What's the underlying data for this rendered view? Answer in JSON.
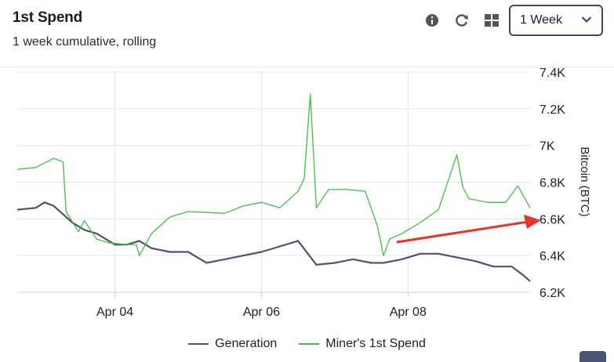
{
  "header": {
    "title": "1st Spend",
    "subtitle": "1 week cumulative, rolling",
    "range_select": {
      "value": "1 Week"
    },
    "icons": [
      "info-icon",
      "refresh-icon",
      "grid-view-icon",
      "chevron-down-icon"
    ]
  },
  "colors": {
    "generation": "#4a5573",
    "miners_first_spend": "#3fc13f",
    "annotation_arrow": "#e8332a",
    "grid": "#e5e5e5"
  },
  "chart_data": {
    "type": "line",
    "ylabel": "Bitcoin (BTC)",
    "ylim": [
      6200,
      7400
    ],
    "yticks": [
      6200,
      6400,
      6600,
      6800,
      7000,
      7200,
      7400
    ],
    "ytick_labels": [
      "6.2K",
      "6.4K",
      "6.6K",
      "6.8K",
      "7K",
      "7.2K",
      "7.4K"
    ],
    "xlim": [
      "2025-04-02 16:00",
      "2025-04-09 16:00"
    ],
    "xticks": [
      "2025-04-04",
      "2025-04-06",
      "2025-04-08"
    ],
    "xtick_labels": [
      "Apr 04",
      "Apr 06",
      "Apr 08"
    ],
    "grid": true,
    "legend_position": "bottom",
    "series": [
      {
        "name": "Generation",
        "x": [
          "2025-04-02 16:00",
          "2025-04-02 22:00",
          "2025-04-03 01:00",
          "2025-04-03 04:00",
          "2025-04-03 10:00",
          "2025-04-03 14:00",
          "2025-04-03 18:00",
          "2025-04-03 22:00",
          "2025-04-04 00:00",
          "2025-04-04 04:00",
          "2025-04-04 08:00",
          "2025-04-04 12:00",
          "2025-04-04 18:00",
          "2025-04-05 00:00",
          "2025-04-05 06:00",
          "2025-04-05 12:00",
          "2025-04-05 18:00",
          "2025-04-06 00:00",
          "2025-04-06 06:00",
          "2025-04-06 12:00",
          "2025-04-06 18:00",
          "2025-04-07 00:00",
          "2025-04-07 06:00",
          "2025-04-07 12:00",
          "2025-04-07 16:00",
          "2025-04-07 22:00",
          "2025-04-08 04:00",
          "2025-04-08 10:00",
          "2025-04-08 16:00",
          "2025-04-08 22:00",
          "2025-04-09 04:00",
          "2025-04-09 10:00",
          "2025-04-09 14:00",
          "2025-04-09 16:00"
        ],
        "y": [
          6650,
          6660,
          6690,
          6670,
          6580,
          6540,
          6520,
          6480,
          6460,
          6460,
          6480,
          6440,
          6420,
          6420,
          6360,
          6380,
          6400,
          6420,
          6450,
          6480,
          6350,
          6360,
          6380,
          6360,
          6360,
          6380,
          6410,
          6410,
          6390,
          6370,
          6340,
          6340,
          6290,
          6260
        ]
      },
      {
        "name": "Miner's 1st Spend",
        "x": [
          "2025-04-02 16:00",
          "2025-04-02 22:00",
          "2025-04-03 04:00",
          "2025-04-03 07:00",
          "2025-04-03 08:00",
          "2025-04-03 12:00",
          "2025-04-03 14:00",
          "2025-04-03 18:00",
          "2025-04-03 22:00",
          "2025-04-04 04:00",
          "2025-04-04 07:00",
          "2025-04-04 08:00",
          "2025-04-04 12:00",
          "2025-04-04 18:00",
          "2025-04-05 00:00",
          "2025-04-05 12:00",
          "2025-04-05 18:00",
          "2025-04-06 00:00",
          "2025-04-06 06:00",
          "2025-04-06 12:00",
          "2025-04-06 14:00",
          "2025-04-06 16:00",
          "2025-04-06 18:00",
          "2025-04-06 22:00",
          "2025-04-07 04:00",
          "2025-04-07 10:00",
          "2025-04-07 14:00",
          "2025-04-07 16:00",
          "2025-04-07 18:00",
          "2025-04-07 22:00",
          "2025-04-08 04:00",
          "2025-04-08 10:00",
          "2025-04-08 12:00",
          "2025-04-08 16:00",
          "2025-04-08 18:00",
          "2025-04-08 20:00",
          "2025-04-09 02:00",
          "2025-04-09 08:00",
          "2025-04-09 12:00",
          "2025-04-09 16:00"
        ],
        "y": [
          6870,
          6880,
          6930,
          6910,
          6640,
          6530,
          6590,
          6490,
          6470,
          6460,
          6460,
          6400,
          6520,
          6610,
          6640,
          6630,
          6670,
          6690,
          6660,
          6750,
          6820,
          7280,
          6660,
          6760,
          6760,
          6750,
          6560,
          6400,
          6490,
          6520,
          6580,
          6650,
          6750,
          6950,
          6770,
          6710,
          6690,
          6690,
          6780,
          6660
        ]
      }
    ]
  }
}
